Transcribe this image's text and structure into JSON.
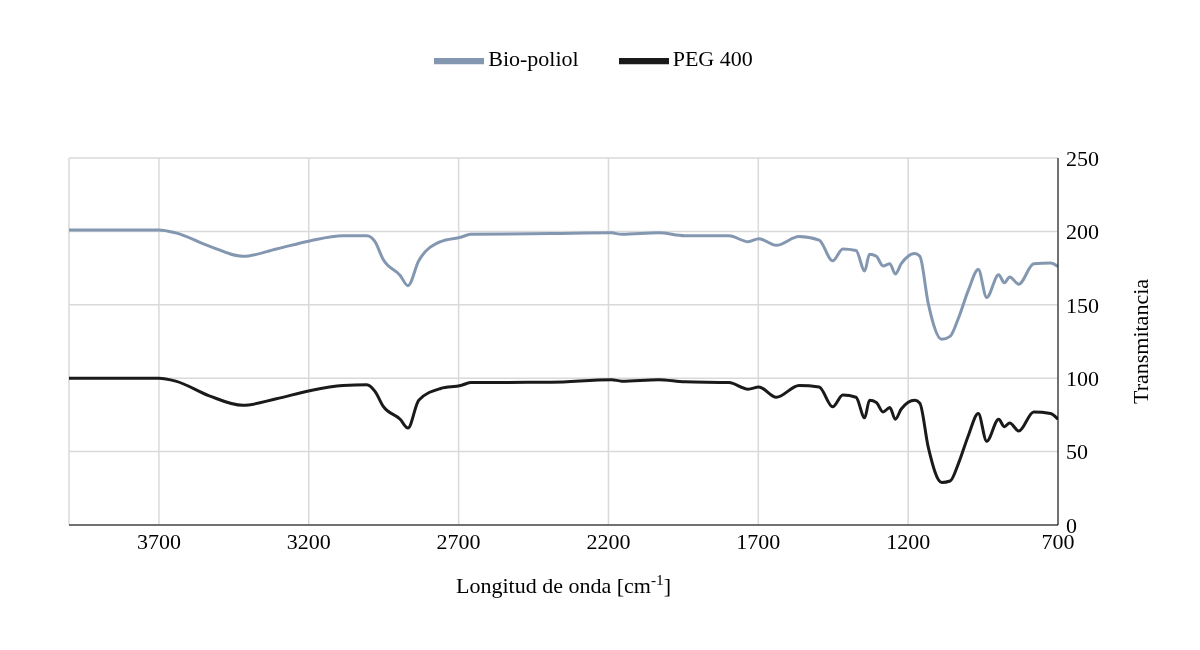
{
  "chart_data": {
    "type": "line",
    "xlabel": "Longitud de onda [cm$^{-1}$]",
    "ylabel": "Transmitancia",
    "xlim": [
      4000,
      700
    ],
    "xticks": [
      3700,
      3200,
      2700,
      2200,
      1700,
      1200,
      700
    ],
    "ylim": [
      0,
      250
    ],
    "yticks": [
      0,
      50,
      100,
      150,
      200,
      250
    ],
    "grid": true,
    "legend": "top",
    "marker": "none",
    "line_style": "solid",
    "x": [
      4000,
      3700,
      3644,
      3532,
      3420,
      3308,
      3197,
      3086,
      3006,
      2979,
      2952,
      2895,
      2869,
      2833,
      2760,
      2693,
      2660,
      2391,
      2190,
      2156,
      2033,
      1945,
      1798,
      1734,
      1698,
      1640,
      1564,
      1497,
      1452,
      1418,
      1374,
      1345,
      1329,
      1306,
      1284,
      1261,
      1243,
      1223,
      1178,
      1161,
      1133,
      1088,
      1060,
      1032,
      999,
      966,
      938,
      898,
      879,
      861,
      831,
      781,
      725,
      700
    ],
    "series": [
      {
        "name": "Bio-poliol",
        "color": "#8497b0",
        "values": [
          201,
          201,
          199,
          190,
          183,
          188,
          193.5,
          197,
          197,
          193,
          181,
          170,
          163,
          180,
          193,
          196,
          198,
          198.5,
          199,
          198,
          199,
          197,
          197,
          193,
          195,
          190.5,
          196.5,
          194,
          180,
          188,
          187,
          173,
          184.5,
          183,
          176.5,
          178,
          171,
          178,
          185,
          183,
          151,
          126.5,
          128.5,
          141,
          160,
          174,
          155,
          170.5,
          165,
          169,
          164,
          178,
          178.5,
          176
        ]
      },
      {
        "name": "PEG 400",
        "color": "#1a1a1a",
        "values": [
          100,
          100,
          98,
          88,
          81.5,
          86,
          91.5,
          95,
          95.5,
          91,
          81,
          72,
          66,
          85,
          93,
          95,
          97,
          97.3,
          99,
          98,
          99,
          97.5,
          97,
          92.5,
          94,
          87,
          95,
          94,
          80.5,
          88.5,
          87,
          73,
          85,
          83.5,
          77,
          80,
          72,
          79,
          85,
          83,
          53,
          29,
          30,
          42,
          61,
          76,
          57,
          72,
          67,
          69.5,
          64,
          77,
          76,
          72
        ]
      }
    ]
  }
}
